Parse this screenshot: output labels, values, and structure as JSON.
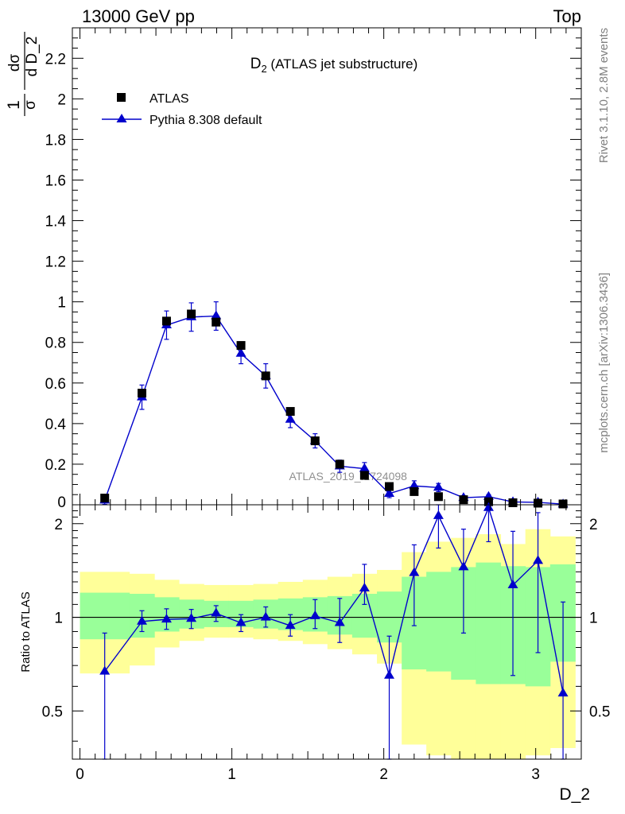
{
  "header": {
    "left_label": "13000 GeV pp",
    "right_label": "Top"
  },
  "side_labels": {
    "rivet": "Rivet 3.1.10,  2.8M events",
    "mcplots": "mcplots.cern.ch [arXiv:1306.3436]"
  },
  "chart_data": [
    {
      "type": "scatter",
      "title_base": "D",
      "title_sub": "2",
      "title_rest": " (ATLAS jet substructure)",
      "ylabel_parts": {
        "top_1": "1",
        "bot_1": "σ",
        "top_2": "dσ",
        "bot_2": "d D_2"
      },
      "watermark": "ATLAS_2019_I1724098",
      "xlim": [
        -0.05,
        3.3
      ],
      "ylim": [
        0,
        2.35
      ],
      "y_ticks": [
        0.2,
        0.4,
        0.6,
        0.8,
        1,
        1.2,
        1.4,
        1.6,
        1.8,
        2,
        2.2
      ],
      "y_tick_labels": [
        "0.2",
        "0.4",
        "0.6",
        "0.8",
        "1",
        "1.2",
        "1.4",
        "1.6",
        "1.8",
        "2",
        "2.2"
      ],
      "y_zero_label": "0",
      "legend": {
        "position": "top-left",
        "entries": [
          "ATLAS",
          "Pythia 8.308 default"
        ]
      },
      "colors": {
        "data": "#000000",
        "mc": "#0000cc"
      },
      "series": [
        {
          "name": "ATLAS",
          "marker": "square",
          "x": [
            0.163,
            0.408,
            0.57,
            0.733,
            0.896,
            1.06,
            1.223,
            1.385,
            1.548,
            1.71,
            1.873,
            2.036,
            2.2,
            2.36,
            2.525,
            2.69,
            2.85,
            3.015,
            3.18
          ],
          "y": [
            0.033,
            0.55,
            0.905,
            0.94,
            0.9,
            0.785,
            0.635,
            0.46,
            0.315,
            0.2,
            0.145,
            0.09,
            0.065,
            0.04,
            0.025,
            0.015,
            0.01,
            0.008,
            0.004
          ],
          "yerr": [
            0.01,
            0.02,
            0.02,
            0.02,
            0.02,
            0.015,
            0.02,
            0.01,
            0.01,
            0.008,
            0.005,
            0.004,
            0.003,
            0.002,
            0.002,
            0.001,
            0.001,
            0.001,
            0.0005
          ]
        },
        {
          "name": "Pythia 8.308 default",
          "marker": "triangle",
          "x": [
            0.163,
            0.408,
            0.57,
            0.733,
            0.896,
            1.06,
            1.223,
            1.385,
            1.548,
            1.71,
            1.873,
            2.036,
            2.2,
            2.36,
            2.525,
            2.69,
            2.85,
            3.015,
            3.18
          ],
          "y": [
            0.022,
            0.53,
            0.885,
            0.925,
            0.93,
            0.745,
            0.635,
            0.42,
            0.315,
            0.19,
            0.178,
            0.055,
            0.093,
            0.085,
            0.035,
            0.04,
            0.014,
            0.012,
            0.003
          ],
          "yerr": [
            0.02,
            0.06,
            0.07,
            0.07,
            0.07,
            0.05,
            0.06,
            0.04,
            0.035,
            0.03,
            0.03,
            0.02,
            0.025,
            0.02,
            0.01,
            0.01,
            0.008,
            0.006,
            0.004
          ]
        }
      ]
    },
    {
      "type": "scatter",
      "ylabel": "Ratio to ATLAS",
      "xlabel": "D_2",
      "xlim": [
        -0.05,
        3.3
      ],
      "ylim": [
        0.35,
        2.3
      ],
      "y_ticks": [
        0.5,
        1,
        2
      ],
      "y_tick_labels": [
        "0.5",
        "1",
        "2"
      ],
      "x_ticks": [
        0,
        1,
        2,
        3
      ],
      "x_tick_labels": [
        "0",
        "1",
        "2",
        "3"
      ],
      "reference_line": 1,
      "colors": {
        "band_inner": "#99ff99",
        "band_outer": "#ffff99",
        "mc": "#0000cc"
      },
      "bands": {
        "edges": [
          0.0,
          0.325,
          0.49,
          0.652,
          0.815,
          0.978,
          1.141,
          1.304,
          1.467,
          1.629,
          1.792,
          1.955,
          2.118,
          2.28,
          2.443,
          2.606,
          2.769,
          2.932,
          3.095,
          3.26
        ],
        "inner_lo": [
          0.85,
          0.86,
          0.9,
          0.92,
          0.93,
          0.93,
          0.92,
          0.91,
          0.9,
          0.88,
          0.86,
          0.83,
          0.68,
          0.67,
          0.63,
          0.61,
          0.61,
          0.6,
          0.72
        ],
        "inner_hi": [
          1.2,
          1.19,
          1.16,
          1.14,
          1.13,
          1.13,
          1.14,
          1.15,
          1.16,
          1.17,
          1.19,
          1.21,
          1.35,
          1.4,
          1.45,
          1.5,
          1.46,
          1.45,
          1.48
        ],
        "outer_lo": [
          0.66,
          0.7,
          0.8,
          0.84,
          0.86,
          0.86,
          0.85,
          0.84,
          0.82,
          0.79,
          0.76,
          0.71,
          0.39,
          0.36,
          0.32,
          0.3,
          0.34,
          0.36,
          0.38
        ],
        "outer_hi": [
          1.4,
          1.38,
          1.32,
          1.28,
          1.27,
          1.27,
          1.28,
          1.3,
          1.32,
          1.35,
          1.38,
          1.42,
          1.62,
          1.75,
          1.8,
          1.85,
          1.72,
          1.92,
          1.82
        ]
      },
      "series": [
        {
          "name": "Pythia 8.308 default",
          "marker": "triangle",
          "x": [
            0.163,
            0.408,
            0.57,
            0.733,
            0.896,
            1.06,
            1.223,
            1.385,
            1.548,
            1.71,
            1.873,
            2.036,
            2.2,
            2.36,
            2.525,
            2.69,
            2.85,
            3.015,
            3.18
          ],
          "y": [
            0.67,
            0.97,
            0.985,
            0.99,
            1.03,
            0.96,
            1.0,
            0.94,
            1.01,
            0.96,
            1.24,
            0.65,
            1.39,
            2.12,
            1.45,
            2.25,
            1.27,
            1.52,
            0.57
          ],
          "yerr_lo": [
            0.32,
            0.07,
            0.07,
            0.07,
            0.06,
            0.06,
            0.07,
            0.07,
            0.09,
            0.13,
            0.14,
            0.3,
            0.45,
            0.45,
            0.56,
            0.5,
            0.62,
            0.75,
            0.25
          ],
          "yerr_hi": [
            0.22,
            0.08,
            0.08,
            0.07,
            0.06,
            0.06,
            0.08,
            0.08,
            0.13,
            0.19,
            0.24,
            0.22,
            0.32,
            0.45,
            0.47,
            0.4,
            0.62,
            0.65,
            0.55
          ]
        }
      ]
    }
  ]
}
